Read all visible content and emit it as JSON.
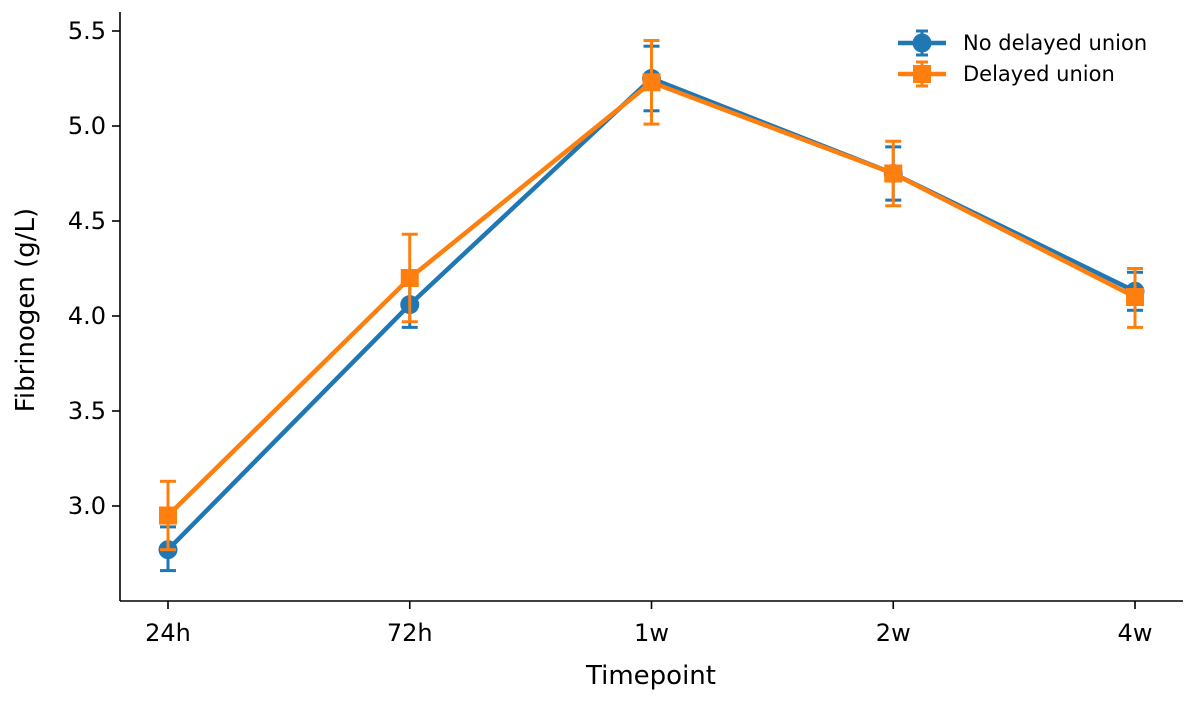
{
  "chart_data": {
    "type": "line",
    "title": "",
    "xlabel": "Timepoint",
    "ylabel": "Fibrinogen (g/L)",
    "categories": [
      "24h",
      "72h",
      "1w",
      "2w",
      "4w"
    ],
    "ylim": [
      2.5,
      5.6
    ],
    "yticks": [
      "3.0",
      "3.5",
      "4.0",
      "4.5",
      "5.0",
      "5.5"
    ],
    "grid": false,
    "legend_position": "top-right",
    "series": [
      {
        "name": "No delayed union",
        "color": "#1f77b4",
        "marker": "circle",
        "values": [
          2.77,
          4.06,
          5.25,
          4.75,
          4.13
        ],
        "err_low": [
          2.66,
          3.94,
          5.08,
          4.61,
          4.03
        ],
        "err_high": [
          2.89,
          4.19,
          5.42,
          4.89,
          4.23
        ]
      },
      {
        "name": "Delayed union",
        "color": "#ff7f0e",
        "marker": "square",
        "values": [
          2.95,
          4.2,
          5.23,
          4.75,
          4.1
        ],
        "err_low": [
          2.77,
          3.97,
          5.01,
          4.58,
          3.94
        ],
        "err_high": [
          3.13,
          4.43,
          5.45,
          4.92,
          4.25
        ]
      }
    ]
  }
}
